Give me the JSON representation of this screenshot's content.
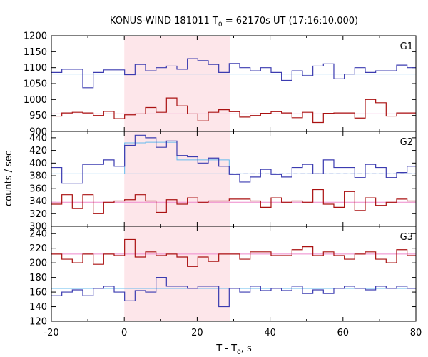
{
  "chart_data": {
    "type": "line",
    "title_main": "KONUS-WIND 181011 T",
    "title_sub": "0",
    "title_rest": " = 62170s UT (17:16:10.000)",
    "xlabel_main": "T - T",
    "xlabel_sub": "0",
    "xlabel_rest": ", s",
    "ylabel": "counts / sec",
    "xlim": [
      -20,
      80
    ],
    "xticks": [
      "-20",
      "0",
      "20",
      "40",
      "60",
      "80"
    ],
    "x_tick_values": [
      -20,
      0,
      20,
      40,
      60,
      80
    ],
    "highlight_interval": [
      0,
      29
    ],
    "bin_edges": [
      -20,
      -17.13,
      -14.26,
      -11.39,
      -8.52,
      -5.65,
      -2.78,
      0.09,
      2.96,
      5.83,
      8.7,
      11.57,
      14.44,
      17.31,
      20.18,
      23.05,
      25.92,
      28.79,
      31.66,
      34.53,
      37.4,
      40.27,
      43.14,
      46.01,
      48.88,
      51.75,
      54.62,
      57.49,
      60.36,
      63.23,
      66.1,
      68.97,
      71.84,
      74.71,
      77.58,
      80
    ],
    "panels": [
      {
        "label": "G1",
        "ylim": [
          900,
          1200
        ],
        "yticks": [
          900,
          950,
          1000,
          1050,
          1100,
          1150,
          1200
        ],
        "series": [
          {
            "color": "#3b3bb0",
            "values": [
              1085,
              1095,
              1095,
              1037,
              1085,
              1093,
              1093,
              1078,
              1110,
              1090,
              1100,
              1105,
              1095,
              1128,
              1122,
              1110,
              1085,
              1113,
              1100,
              1090,
              1100,
              1085,
              1060,
              1090,
              1075,
              1105,
              1112,
              1065,
              1080,
              1100,
              1085,
              1090,
              1090,
              1108,
              1100
            ]
          },
          {
            "color": "#aa1111",
            "values": [
              948,
              958,
              960,
              958,
              950,
              963,
              940,
              952,
              955,
              975,
              960,
              1005,
              980,
              955,
              933,
              960,
              968,
              962,
              945,
              950,
              957,
              962,
              958,
              943,
              960,
              928,
              957,
              958,
              958,
              942,
              1000,
              990,
              948,
              958,
              958
            ]
          }
        ],
        "fits": [
          {
            "color": "#66bbee",
            "level": 1080
          },
          {
            "color": "#ee88cc",
            "level": 955
          }
        ]
      },
      {
        "label": "G2",
        "ylim": [
          300,
          450
        ],
        "yticks": [
          300,
          320,
          340,
          360,
          380,
          400,
          420,
          440
        ],
        "series": [
          {
            "color": "#3b3bb0",
            "values": [
              393,
              368,
              368,
              398,
              398,
              405,
              395,
              428,
              444,
              440,
              425,
              435,
              412,
              410,
              400,
              408,
              395,
              382,
              370,
              378,
              390,
              382,
              378,
              393,
              398,
              383,
              405,
              393,
              393,
              377,
              398,
              393,
              377,
              385,
              395
            ]
          },
          {
            "color": "#aa1111",
            "values": [
              335,
              350,
              328,
              350,
              320,
              338,
              340,
              342,
              350,
              340,
              322,
              342,
              335,
              345,
              338,
              340,
              340,
              343,
              343,
              340,
              330,
              345,
              338,
              340,
              338,
              358,
              335,
              330,
              355,
              325,
              345,
              333,
              338,
              343,
              340
            ]
          }
        ],
        "fits": [
          {
            "color": "#66bbee",
            "level": 383,
            "step": [
              {
                "x0": 0.09,
                "x1": 5.83,
                "level": 432
              },
              {
                "x0": 5.83,
                "x1": 14.44,
                "level": 433
              },
              {
                "x0": 14.44,
                "x1": 28.79,
                "level": 405
              }
            ]
          },
          {
            "color": "#ee88cc",
            "level": 338
          }
        ],
        "baseline": {
          "color": "#3b3bb0",
          "level": 383
        }
      },
      {
        "label": "G3",
        "ylim": [
          120,
          250
        ],
        "yticks": [
          120,
          140,
          160,
          180,
          200,
          220,
          240
        ],
        "series": [
          {
            "color": "#aa1111",
            "values": [
              212,
              205,
              200,
              212,
              198,
              212,
              210,
              232,
              208,
              215,
              210,
              212,
              208,
              195,
              208,
              202,
              212,
              212,
              205,
              215,
              215,
              210,
              210,
              218,
              222,
              210,
              215,
              210,
              205,
              212,
              215,
              205,
              200,
              218,
              210
            ]
          },
          {
            "color": "#3b3bb0",
            "values": [
              155,
              160,
              163,
              155,
              165,
              168,
              160,
              148,
              162,
              160,
              180,
              168,
              168,
              165,
              168,
              168,
              140,
              165,
              160,
              168,
              162,
              165,
              162,
              168,
              158,
              163,
              158,
              165,
              168,
              165,
              163,
              168,
              165,
              168,
              165
            ]
          }
        ],
        "fits": [
          {
            "color": "#ee88cc",
            "level": 212
          },
          {
            "color": "#66bbee",
            "level": 165
          }
        ]
      }
    ]
  }
}
